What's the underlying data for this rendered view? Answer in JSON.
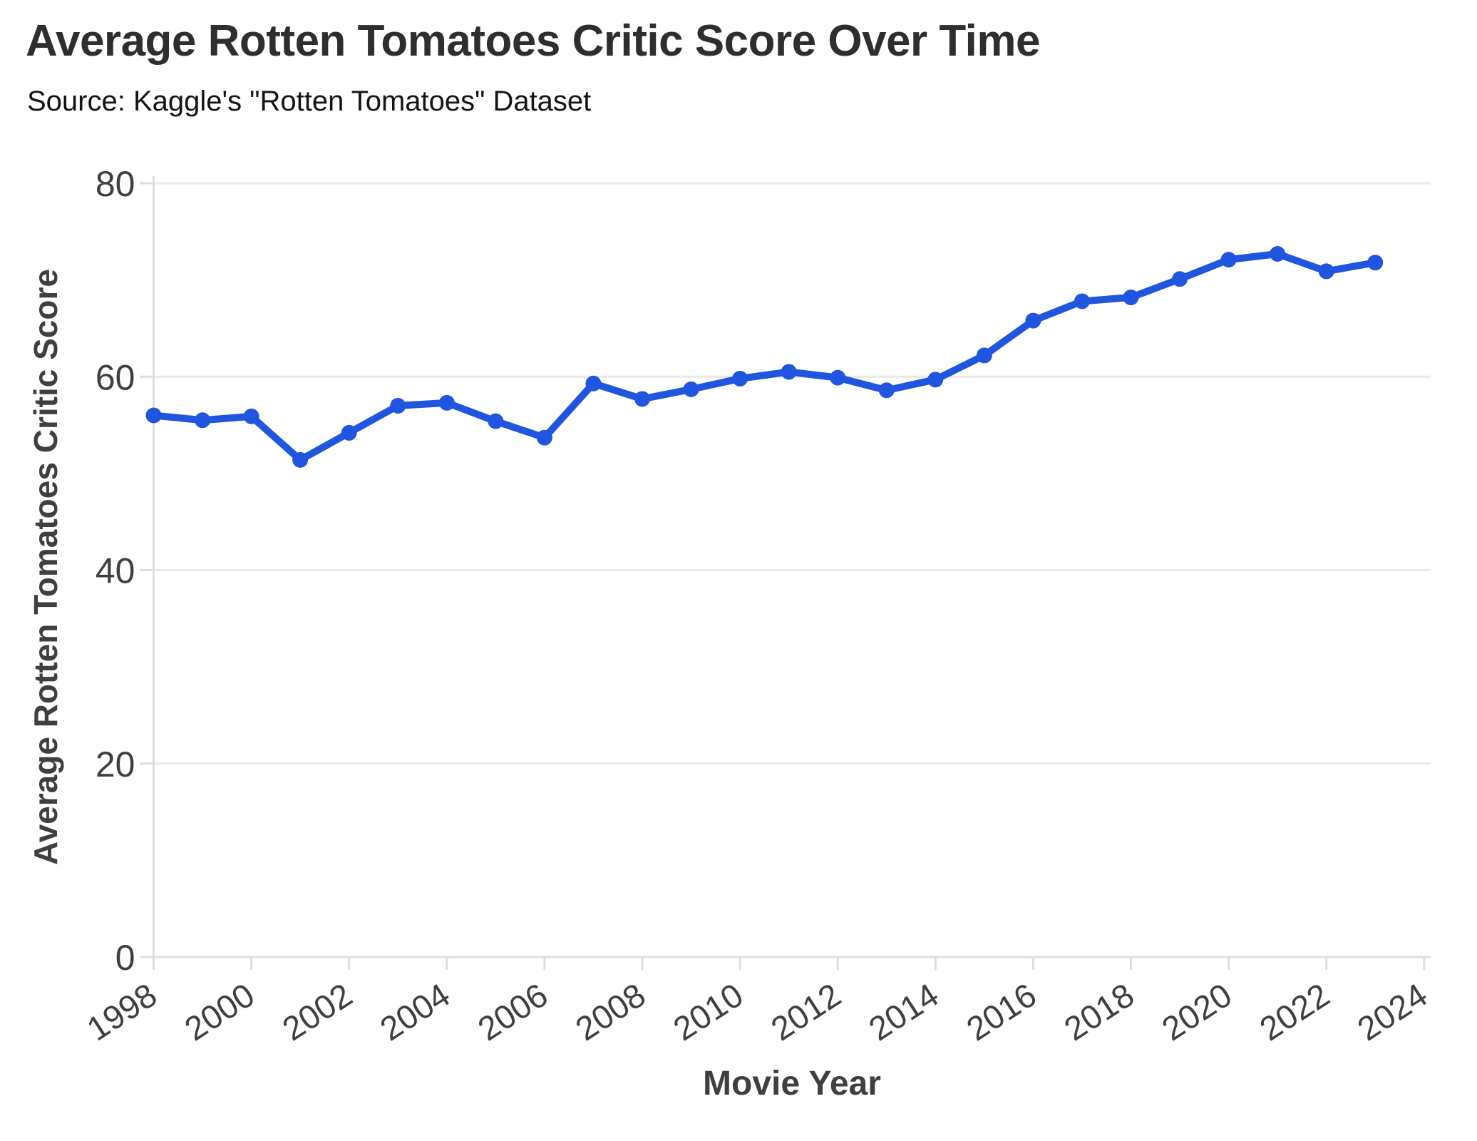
{
  "chart_data": {
    "type": "line",
    "title": "Average Rotten Tomatoes Critic Score Over Time",
    "subtitle": "Source: Kaggle's \"Rotten Tomatoes\" Dataset",
    "xlabel": "Movie Year",
    "ylabel": "Average Rotten Tomatoes Critic Score",
    "x": [
      1998,
      1999,
      2000,
      2001,
      2002,
      2003,
      2004,
      2005,
      2006,
      2007,
      2008,
      2009,
      2010,
      2011,
      2012,
      2013,
      2014,
      2015,
      2016,
      2017,
      2018,
      2019,
      2020,
      2021,
      2022,
      2023
    ],
    "series": [
      {
        "name": "Average Rotten Tomatoes Critic Score",
        "values": [
          56.0,
          55.5,
          55.9,
          51.4,
          54.2,
          57.0,
          57.3,
          55.4,
          53.7,
          59.3,
          57.7,
          58.7,
          59.8,
          60.5,
          59.9,
          58.6,
          59.7,
          62.2,
          65.8,
          67.8,
          68.2,
          70.1,
          72.1,
          72.7,
          70.9,
          71.8
        ]
      }
    ],
    "x_ticks": [
      1998,
      2000,
      2002,
      2004,
      2006,
      2008,
      2010,
      2012,
      2014,
      2016,
      2018,
      2020,
      2022,
      2024
    ],
    "y_ticks": [
      0,
      20,
      40,
      60,
      80
    ],
    "xlim": [
      1998,
      2024.2
    ],
    "ylim": [
      0,
      80
    ],
    "grid": "horizontal-only",
    "legend": "none",
    "marker": "circle",
    "colors": {
      "line": "#2055DF",
      "grid": "#e9e9e9",
      "axis": "#dedede",
      "tick_label": "#3f3f3f",
      "title": "#2e2e2e",
      "subtitle": "#141414",
      "axis_title": "#3f3f3f"
    }
  }
}
